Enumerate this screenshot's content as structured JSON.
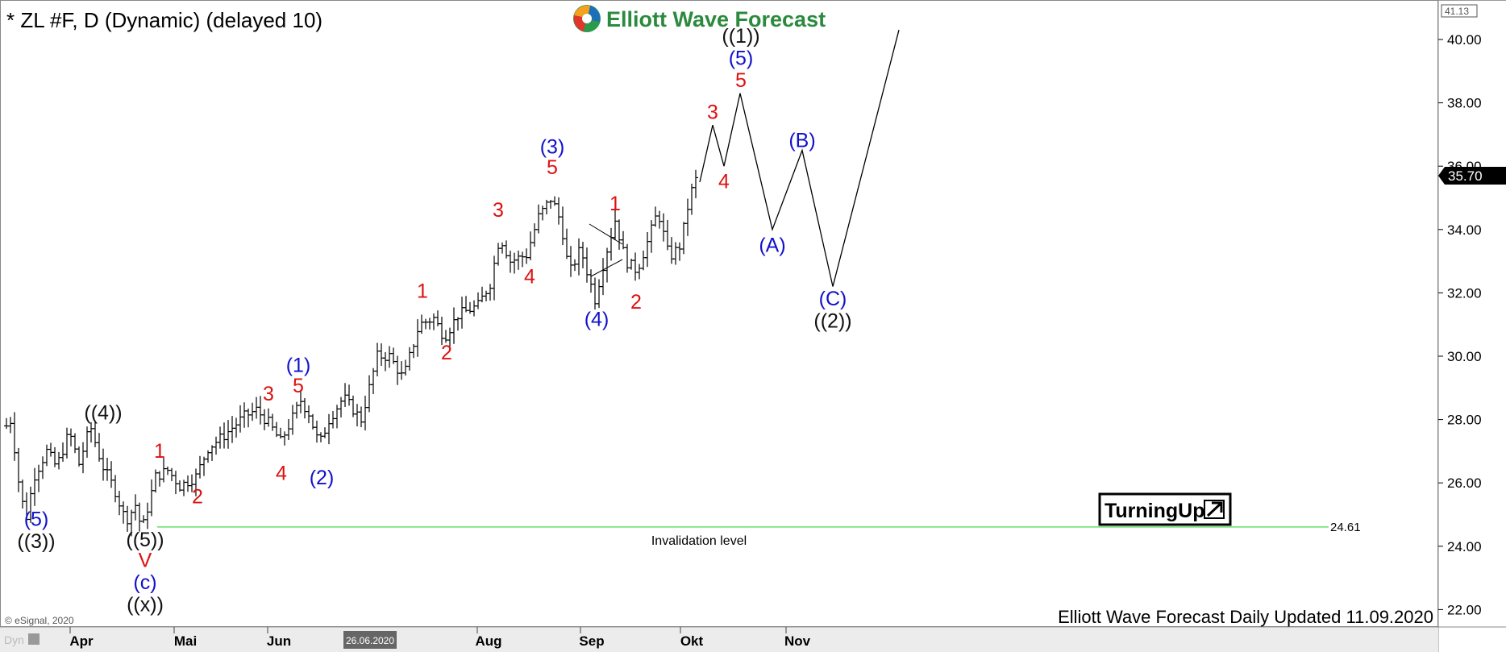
{
  "header": {
    "title": "* ZL #F, D (Dynamic) (delayed 10)",
    "brand": "Elliott Wave Forecast"
  },
  "footer": {
    "copyright": "© eSignal, 2020",
    "update_note": "Elliott Wave Forecast Daily Updated 11.09.2020",
    "corner_tag": "Dyn",
    "date_marker": "26.06.2020"
  },
  "badge": {
    "text": "TurningUp",
    "icon": "up-right-arrow-icon"
  },
  "invalidation": {
    "label": "Invalidation level",
    "value": 24.61,
    "value_label": "24.61",
    "color": "#66dd66"
  },
  "price_axis": {
    "ticks": [
      "40.00",
      "38.00",
      "36.00",
      "34.00",
      "32.00",
      "30.00",
      "28.00",
      "26.00",
      "24.00",
      "22.00"
    ],
    "high_tag": "41.13",
    "last_price_tag": "35.70"
  },
  "colors": {
    "black": "#111111",
    "blue": "#1111cc",
    "red": "#dd1111",
    "bars": "#000000"
  },
  "chart_data": {
    "type": "bar",
    "instrument": "ZL #F",
    "timeframe": "D",
    "ylim": [
      21.5,
      41.13
    ],
    "months": [
      "Apr",
      "Mai",
      "Jun",
      "Aug",
      "Sep",
      "Okt",
      "Nov"
    ],
    "price_path": [
      {
        "t": 0,
        "p": 27.8
      },
      {
        "t": 6,
        "p": 28.0
      },
      {
        "t": 14,
        "p": 26.2
      },
      {
        "t": 24,
        "p": 24.8
      },
      {
        "t": 34,
        "p": 26.2
      },
      {
        "t": 50,
        "p": 27.0
      },
      {
        "t": 62,
        "p": 26.5
      },
      {
        "t": 78,
        "p": 27.6
      },
      {
        "t": 90,
        "p": 26.6
      },
      {
        "t": 104,
        "p": 27.8
      },
      {
        "t": 118,
        "p": 26.6
      },
      {
        "t": 134,
        "p": 25.8
      },
      {
        "t": 148,
        "p": 24.8
      },
      {
        "t": 160,
        "p": 25.3
      },
      {
        "t": 168,
        "p": 24.5
      },
      {
        "t": 185,
        "p": 26.2
      },
      {
        "t": 200,
        "p": 26.4
      },
      {
        "t": 215,
        "p": 25.9
      },
      {
        "t": 235,
        "p": 26.2
      },
      {
        "t": 250,
        "p": 27.1
      },
      {
        "t": 270,
        "p": 27.5
      },
      {
        "t": 295,
        "p": 28.1
      },
      {
        "t": 310,
        "p": 28.3
      },
      {
        "t": 325,
        "p": 27.9
      },
      {
        "t": 340,
        "p": 27.3
      },
      {
        "t": 352,
        "p": 27.9
      },
      {
        "t": 365,
        "p": 28.6
      },
      {
        "t": 375,
        "p": 28.2
      },
      {
        "t": 388,
        "p": 27.2
      },
      {
        "t": 400,
        "p": 28.0
      },
      {
        "t": 418,
        "p": 28.7
      },
      {
        "t": 440,
        "p": 28.0
      },
      {
        "t": 460,
        "p": 30.0
      },
      {
        "t": 475,
        "p": 30.0
      },
      {
        "t": 492,
        "p": 29.3
      },
      {
        "t": 512,
        "p": 31.0
      },
      {
        "t": 530,
        "p": 31.2
      },
      {
        "t": 543,
        "p": 30.6
      },
      {
        "t": 560,
        "p": 31.3
      },
      {
        "t": 585,
        "p": 31.6
      },
      {
        "t": 600,
        "p": 32.3
      },
      {
        "t": 612,
        "p": 33.8
      },
      {
        "t": 625,
        "p": 33.0
      },
      {
        "t": 645,
        "p": 33.2
      },
      {
        "t": 660,
        "p": 34.4
      },
      {
        "t": 676,
        "p": 35.0
      },
      {
        "t": 688,
        "p": 34.2
      },
      {
        "t": 698,
        "p": 32.6
      },
      {
        "t": 712,
        "p": 33.4
      },
      {
        "t": 730,
        "p": 31.8
      },
      {
        "t": 742,
        "p": 33.1
      },
      {
        "t": 755,
        "p": 34.3
      },
      {
        "t": 768,
        "p": 33.0
      },
      {
        "t": 782,
        "p": 32.7
      },
      {
        "t": 795,
        "p": 33.6
      },
      {
        "t": 808,
        "p": 34.6
      },
      {
        "t": 822,
        "p": 33.1
      },
      {
        "t": 836,
        "p": 33.5
      },
      {
        "t": 848,
        "p": 35.1
      },
      {
        "t": 857,
        "p": 35.7
      }
    ],
    "projection": [
      {
        "t": 860,
        "p": 35.5
      },
      {
        "t": 876,
        "p": 37.3
      },
      {
        "t": 890,
        "p": 36.0
      },
      {
        "t": 910,
        "p": 38.3
      },
      {
        "t": 950,
        "p": 34.0
      },
      {
        "t": 987,
        "p": 36.5
      },
      {
        "t": 1025,
        "p": 32.2
      },
      {
        "t": 1107,
        "p": 40.3
      }
    ],
    "wave_labels": [
      {
        "text": "(5)",
        "t": 37,
        "p": 24.65,
        "color": "blue"
      },
      {
        "text": "((3))",
        "t": 37,
        "p": 23.95,
        "color": "black"
      },
      {
        "text": "((4))",
        "t": 120,
        "p": 28.0,
        "color": "black"
      },
      {
        "text": "((5))",
        "t": 172,
        "p": 24.0,
        "color": "black"
      },
      {
        "text": "V",
        "t": 172,
        "p": 23.35,
        "color": "red"
      },
      {
        "text": "(c)",
        "t": 172,
        "p": 22.65,
        "color": "blue"
      },
      {
        "text": "((x))",
        "t": 172,
        "p": 21.95,
        "color": "black"
      },
      {
        "text": "1",
        "t": 190,
        "p": 26.8,
        "color": "red"
      },
      {
        "text": "2",
        "t": 237,
        "p": 25.35,
        "color": "red"
      },
      {
        "text": "3",
        "t": 325,
        "p": 28.6,
        "color": "red"
      },
      {
        "text": "4",
        "t": 341,
        "p": 26.1,
        "color": "red"
      },
      {
        "text": "5",
        "t": 362,
        "p": 28.85,
        "color": "red"
      },
      {
        "text": "(1)",
        "t": 362,
        "p": 29.5,
        "color": "blue"
      },
      {
        "text": "(2)",
        "t": 391,
        "p": 25.95,
        "color": "blue"
      },
      {
        "text": "1",
        "t": 516,
        "p": 31.85,
        "color": "red"
      },
      {
        "text": "2",
        "t": 546,
        "p": 29.9,
        "color": "red"
      },
      {
        "text": "3",
        "t": 610,
        "p": 34.4,
        "color": "red"
      },
      {
        "text": "4",
        "t": 649,
        "p": 32.3,
        "color": "red"
      },
      {
        "text": "5",
        "t": 677,
        "p": 35.75,
        "color": "red"
      },
      {
        "text": "(3)",
        "t": 677,
        "p": 36.4,
        "color": "blue"
      },
      {
        "text": "(4)",
        "t": 732,
        "p": 30.95,
        "color": "blue"
      },
      {
        "text": "1",
        "t": 755,
        "p": 34.6,
        "color": "red"
      },
      {
        "text": "2",
        "t": 781,
        "p": 31.5,
        "color": "red"
      },
      {
        "text": "3",
        "t": 876,
        "p": 37.5,
        "color": "red"
      },
      {
        "text": "4",
        "t": 890,
        "p": 35.3,
        "color": "red"
      },
      {
        "text": "5",
        "t": 911,
        "p": 38.5,
        "color": "red"
      },
      {
        "text": "(5)",
        "t": 911,
        "p": 39.2,
        "color": "blue"
      },
      {
        "text": "((1))",
        "t": 911,
        "p": 39.9,
        "color": "black"
      },
      {
        "text": "(A)",
        "t": 950,
        "p": 33.3,
        "color": "blue"
      },
      {
        "text": "(B)",
        "t": 987,
        "p": 36.6,
        "color": "blue"
      },
      {
        "text": "(C)",
        "t": 1025,
        "p": 31.6,
        "color": "blue"
      },
      {
        "text": "((2))",
        "t": 1025,
        "p": 30.9,
        "color": "black"
      }
    ]
  }
}
